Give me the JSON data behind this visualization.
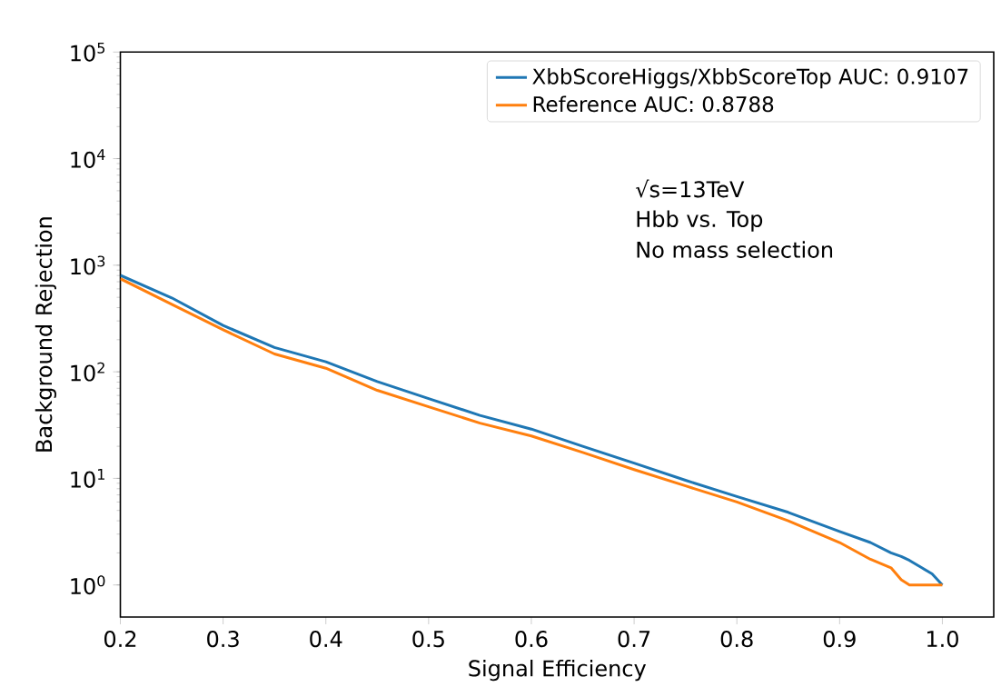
{
  "chart_data": {
    "type": "line",
    "xlabel": "Signal Efficiency",
    "ylabel": "Background Rejection",
    "xlim": [
      0.2,
      1.05
    ],
    "ylim": [
      0.5,
      100000
    ],
    "log": "y",
    "xticks": [
      0.2,
      0.3,
      0.4,
      0.5,
      0.6,
      0.7,
      0.8,
      0.9,
      {
        "value": 1.0,
        "label": "1.0"
      }
    ],
    "yticks": [
      {
        "value": 1,
        "label": "10$^{0}$"
      },
      {
        "value": 10,
        "label": "10$^{1}$"
      },
      {
        "value": 100,
        "label": "10$^{2}$"
      },
      {
        "value": 1000,
        "label": "10$^{3}$"
      },
      {
        "value": 10000,
        "label": "10$^{4}$"
      },
      {
        "value": 100000,
        "label": "10$^{5}$"
      }
    ],
    "x": [
      0.2,
      0.25,
      0.3,
      0.35,
      0.4,
      0.45,
      0.5,
      0.55,
      0.6,
      0.65,
      0.7,
      0.75,
      0.8,
      0.85,
      0.9,
      0.93,
      0.95,
      0.96,
      0.968,
      0.98,
      0.99,
      1.0
    ],
    "series": [
      {
        "name": "XbbScoreHiggs/XbbScoreTop AUC: 0.9107",
        "color": "#1f77b4",
        "values": [
          804,
          494,
          272,
          169,
          124,
          81,
          56,
          39,
          29,
          20,
          13.9,
          9.6,
          6.75,
          4.8,
          3.17,
          2.5,
          2.0,
          1.85,
          1.7,
          1.45,
          1.27,
          1.0
        ]
      },
      {
        "name": "Reference AUC: 0.8788",
        "color": "#ff7f0e",
        "values": [
          747,
          430,
          248,
          147,
          108,
          67,
          47,
          33,
          25,
          17.5,
          12.1,
          8.5,
          6.0,
          4.0,
          2.5,
          1.74,
          1.45,
          1.12,
          1.0,
          1.0,
          1.0,
          1.0
        ]
      }
    ],
    "annotations": [
      "√s=13TeV",
      "Hbb vs. Top",
      "No mass selection"
    ],
    "legend": "top right",
    "marker": "none",
    "line_style": "solid",
    "grid": false
  }
}
